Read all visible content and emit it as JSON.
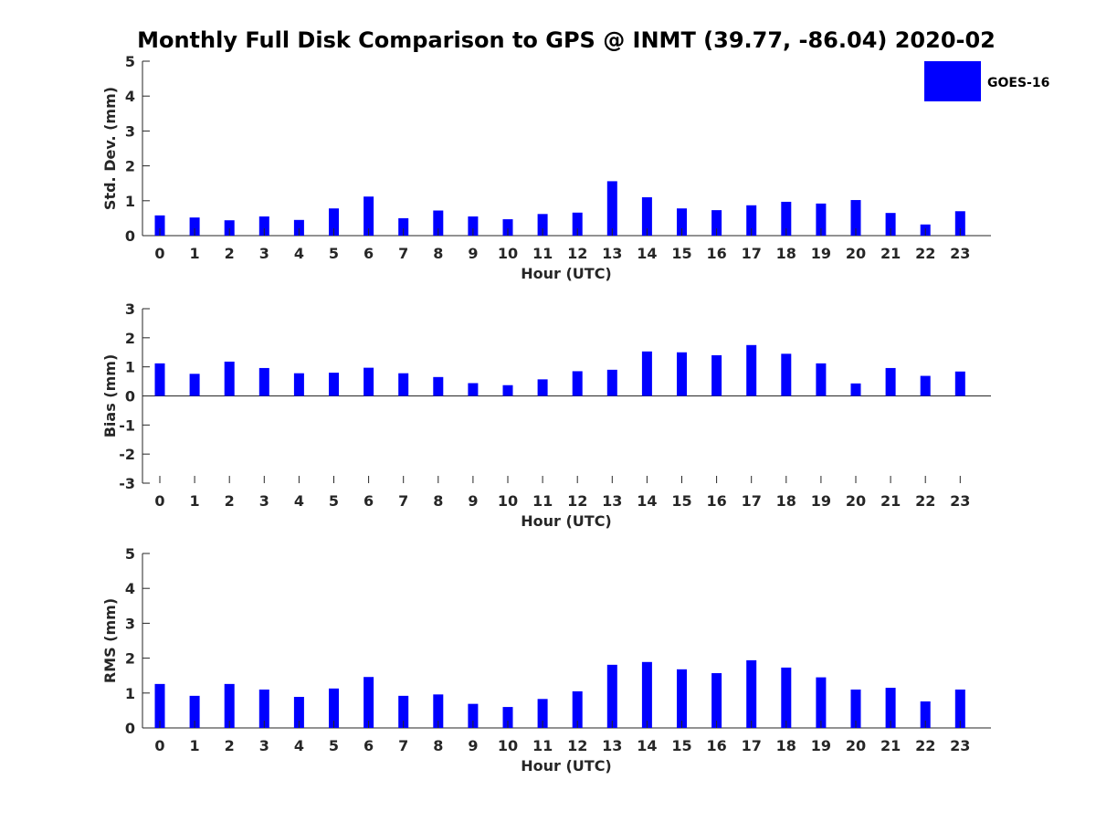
{
  "title": "Monthly Full Disk Comparison to GPS @ INMT (39.77, -86.04) 2020-02",
  "legend": {
    "label": "GOES-16",
    "color": "#0000ff",
    "placement": "top-right"
  },
  "chart_data": [
    {
      "type": "bar",
      "ylabel": "Std. Dev. (mm)",
      "xlabel": "Hour (UTC)",
      "ylim": [
        0,
        5
      ],
      "yticks": [
        0,
        1,
        2,
        3,
        4,
        5
      ],
      "categories": [
        "0",
        "1",
        "2",
        "3",
        "4",
        "5",
        "6",
        "7",
        "8",
        "9",
        "10",
        "11",
        "12",
        "13",
        "14",
        "15",
        "16",
        "17",
        "18",
        "19",
        "20",
        "21",
        "22",
        "23"
      ],
      "series": [
        {
          "name": "GOES-16",
          "values": [
            0.58,
            0.52,
            0.44,
            0.55,
            0.45,
            0.78,
            1.12,
            0.5,
            0.72,
            0.55,
            0.47,
            0.62,
            0.66,
            1.56,
            1.1,
            0.78,
            0.73,
            0.87,
            0.97,
            0.92,
            1.02,
            0.65,
            0.32,
            0.7
          ]
        }
      ]
    },
    {
      "type": "bar",
      "ylabel": "Bias (mm)",
      "xlabel": "Hour (UTC)",
      "ylim": [
        -3,
        3
      ],
      "yticks": [
        -3,
        -2,
        -1,
        0,
        1,
        2,
        3
      ],
      "categories": [
        "0",
        "1",
        "2",
        "3",
        "4",
        "5",
        "6",
        "7",
        "8",
        "9",
        "10",
        "11",
        "12",
        "13",
        "14",
        "15",
        "16",
        "17",
        "18",
        "19",
        "20",
        "21",
        "22",
        "23"
      ],
      "series": [
        {
          "name": "GOES-16",
          "values": [
            1.12,
            0.76,
            1.18,
            0.96,
            0.78,
            0.8,
            0.97,
            0.78,
            0.65,
            0.44,
            0.37,
            0.57,
            0.85,
            0.9,
            1.53,
            1.5,
            1.4,
            1.75,
            1.45,
            1.12,
            0.43,
            0.96,
            0.69,
            0.84
          ]
        }
      ]
    },
    {
      "type": "bar",
      "ylabel": "RMS (mm)",
      "xlabel": "Hour (UTC)",
      "ylim": [
        0,
        5
      ],
      "yticks": [
        0,
        1,
        2,
        3,
        4,
        5
      ],
      "categories": [
        "0",
        "1",
        "2",
        "3",
        "4",
        "5",
        "6",
        "7",
        "8",
        "9",
        "10",
        "11",
        "12",
        "13",
        "14",
        "15",
        "16",
        "17",
        "18",
        "19",
        "20",
        "21",
        "22",
        "23"
      ],
      "series": [
        {
          "name": "GOES-16",
          "values": [
            1.26,
            0.92,
            1.26,
            1.1,
            0.89,
            1.13,
            1.46,
            0.92,
            0.96,
            0.69,
            0.6,
            0.83,
            1.05,
            1.81,
            1.89,
            1.68,
            1.57,
            1.94,
            1.73,
            1.45,
            1.1,
            1.15,
            0.76,
            1.1
          ]
        }
      ]
    }
  ]
}
